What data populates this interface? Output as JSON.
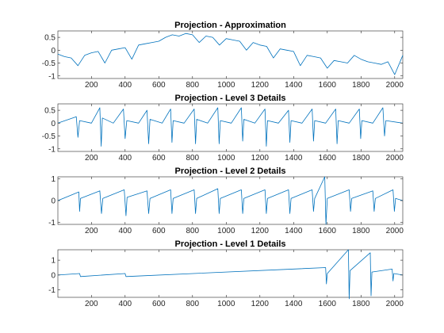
{
  "figure": {
    "line_color": "#0072BD",
    "axis_color": "#262626"
  },
  "chart_data": [
    {
      "type": "line",
      "title": "Projection - Approximation",
      "xlim": [
        1,
        2048
      ],
      "ylim": [
        -1.1,
        0.75
      ],
      "xticks": [
        200,
        400,
        600,
        800,
        1000,
        1200,
        1400,
        1600,
        1800,
        2000
      ],
      "xtick_labels": [
        "200",
        "400",
        "600",
        "800",
        "1000",
        "1200",
        "1400",
        "1600",
        "1800",
        "2000"
      ],
      "yticks": [
        -1,
        -0.5,
        0,
        0.5
      ],
      "ytick_labels": [
        "-1",
        "-0.5",
        "0",
        "0.5"
      ],
      "grid": false,
      "series": [
        {
          "x": [
            1,
            40,
            80,
            120,
            160,
            200,
            240,
            280,
            320,
            360,
            400,
            440,
            480,
            520,
            560,
            600,
            640,
            680,
            720,
            760,
            800,
            840,
            880,
            920,
            960,
            1000,
            1040,
            1080,
            1120,
            1160,
            1200,
            1240,
            1280,
            1320,
            1360,
            1400,
            1440,
            1480,
            1520,
            1560,
            1600,
            1640,
            1680,
            1720,
            1760,
            1800,
            1840,
            1880,
            1920,
            1960,
            2000,
            2048
          ],
          "values": [
            -0.15,
            -0.25,
            -0.3,
            -0.6,
            -0.2,
            -0.1,
            -0.05,
            -0.5,
            0.0,
            0.05,
            0.1,
            -0.35,
            0.2,
            0.25,
            0.3,
            0.35,
            0.5,
            0.6,
            0.55,
            0.65,
            0.6,
            0.3,
            0.55,
            0.5,
            0.2,
            0.45,
            0.4,
            0.35,
            0.0,
            0.3,
            0.2,
            0.15,
            -0.3,
            0.05,
            0.0,
            -0.05,
            -0.6,
            -0.2,
            -0.25,
            -0.3,
            -0.7,
            -0.4,
            -0.45,
            -0.5,
            -0.2,
            -0.35,
            -0.45,
            -0.5,
            -0.55,
            -0.45,
            -0.95,
            -0.2
          ]
        }
      ]
    },
    {
      "type": "line",
      "title": "Projection - Level 3 Details",
      "xlim": [
        1,
        2048
      ],
      "ylim": [
        -1.1,
        0.75
      ],
      "xticks": [
        200,
        400,
        600,
        800,
        1000,
        1200,
        1400,
        1600,
        1800,
        2000
      ],
      "xtick_labels": [
        "200",
        "400",
        "600",
        "800",
        "1000",
        "1200",
        "1400",
        "1600",
        "1800",
        "2000"
      ],
      "yticks": [
        -1,
        -0.5,
        0,
        0.5
      ],
      "ytick_labels": [
        "-1",
        "-0.5",
        "0",
        "0.5"
      ],
      "grid": false,
      "series": [
        {
          "x": [
            1,
            110,
            120,
            130,
            200,
            250,
            258,
            265,
            330,
            390,
            400,
            410,
            480,
            530,
            540,
            548,
            620,
            670,
            678,
            685,
            750,
            810,
            818,
            825,
            890,
            950,
            958,
            965,
            1030,
            1090,
            1098,
            1105,
            1170,
            1230,
            1238,
            1245,
            1310,
            1370,
            1378,
            1385,
            1450,
            1510,
            1518,
            1525,
            1590,
            1650,
            1658,
            1665,
            1730,
            1790,
            1798,
            1805,
            1870,
            1930,
            1940,
            1948,
            2048
          ],
          "values": [
            0,
            0.25,
            -0.55,
            0.1,
            0,
            0.6,
            -0.9,
            0.2,
            0,
            0.55,
            -0.6,
            0.1,
            0,
            0.5,
            -0.8,
            0.15,
            0,
            0.55,
            -0.75,
            0.1,
            0,
            0.55,
            -0.8,
            0.15,
            0,
            0.6,
            -0.8,
            0.1,
            0,
            0.6,
            -0.7,
            0.15,
            0,
            0.55,
            -0.9,
            0.1,
            0,
            0.5,
            -0.75,
            0.1,
            0,
            0.55,
            -0.7,
            0.1,
            0,
            0.55,
            -0.8,
            0.1,
            0,
            0.55,
            -0.6,
            0.1,
            0,
            0.6,
            -0.5,
            0.1,
            0
          ]
        }
      ]
    },
    {
      "type": "line",
      "title": "Projection - Level 2 Details",
      "xlim": [
        1,
        2048
      ],
      "ylim": [
        -1.1,
        1.1
      ],
      "xticks": [
        200,
        400,
        600,
        800,
        1000,
        1200,
        1400,
        1600,
        1800,
        2000
      ],
      "xtick_labels": [
        "200",
        "400",
        "600",
        "800",
        "1000",
        "1200",
        "1400",
        "1600",
        "1800",
        "2000"
      ],
      "yticks": [
        -1,
        0,
        1
      ],
      "ytick_labels": [
        "-1",
        "0",
        "1"
      ],
      "grid": false,
      "series": [
        {
          "x": [
            1,
            125,
            130,
            135,
            250,
            260,
            268,
            395,
            405,
            412,
            530,
            540,
            548,
            670,
            678,
            685,
            810,
            818,
            825,
            950,
            958,
            965,
            1090,
            1098,
            1105,
            1230,
            1238,
            1245,
            1370,
            1378,
            1385,
            1510,
            1518,
            1525,
            1585,
            1592,
            1600,
            1730,
            1738,
            1745,
            1870,
            1878,
            1885,
            1990,
            1998,
            2005,
            2048
          ],
          "values": [
            0,
            0.4,
            -0.5,
            0.1,
            0.45,
            -0.6,
            0.1,
            0.5,
            -0.7,
            0.15,
            0.45,
            -0.6,
            0.1,
            0.5,
            -0.6,
            0.1,
            0.5,
            -0.6,
            0.1,
            0.55,
            -0.6,
            0.1,
            0.5,
            -0.6,
            0.1,
            0.5,
            -0.6,
            0.1,
            0.5,
            -0.6,
            0.1,
            0.5,
            -0.5,
            0.1,
            1.1,
            -1.1,
            0.1,
            0.5,
            -0.5,
            0.1,
            0.45,
            -0.5,
            0.1,
            0.5,
            -0.5,
            0.1,
            0
          ]
        }
      ]
    },
    {
      "type": "line",
      "title": "Projection - Level 1 Details",
      "xlim": [
        1,
        2048
      ],
      "ylim": [
        -1.5,
        1.7
      ],
      "xticks": [
        200,
        400,
        600,
        800,
        1000,
        1200,
        1400,
        1600,
        1800,
        2000
      ],
      "xtick_labels": [
        "200",
        "400",
        "600",
        "800",
        "1000",
        "1200",
        "1400",
        "1600",
        "1800",
        "2000"
      ],
      "yticks": [
        -1,
        0,
        1
      ],
      "ytick_labels": [
        "-1",
        "0",
        "1"
      ],
      "grid": false,
      "series": [
        {
          "x": [
            1,
            130,
            135,
            400,
            405,
            1590,
            1595,
            1600,
            1725,
            1730,
            1735,
            1855,
            1860,
            1865,
            1985,
            1990,
            1995,
            2048
          ],
          "values": [
            0,
            0.1,
            -0.1,
            0.1,
            -0.1,
            0.5,
            -0.6,
            0.1,
            1.7,
            -1.6,
            0.3,
            1.5,
            -1.4,
            0.2,
            0.4,
            -0.4,
            0.1,
            0
          ]
        }
      ]
    }
  ]
}
